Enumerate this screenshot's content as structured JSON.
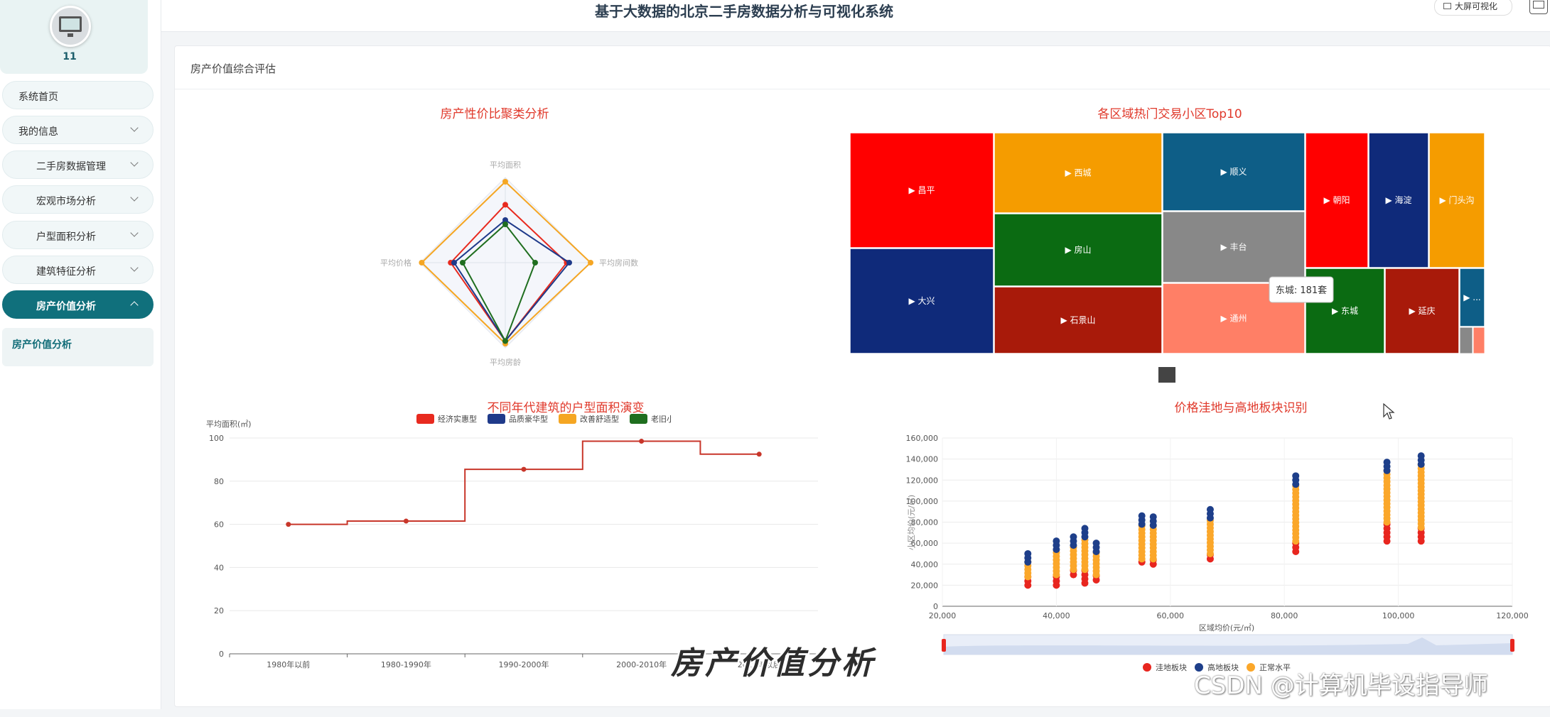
{
  "header": {
    "title": "基于大数据的北京二手房数据分析与可视化系统",
    "bigscreen_label": "大屏可视化"
  },
  "user": {
    "name": "11"
  },
  "sidebar": {
    "items": [
      {
        "label": "系统首页"
      },
      {
        "label": "我的信息"
      },
      {
        "label": "二手房数据管理"
      },
      {
        "label": "宏观市场分析"
      },
      {
        "label": "户型面积分析"
      },
      {
        "label": "建筑特征分析"
      },
      {
        "label": "房产价值分析"
      }
    ],
    "subitem": "房产价值分析"
  },
  "card": {
    "title": "房产价值综合评估"
  },
  "radar": {
    "title": "房产性价比聚类分析",
    "indicators": [
      "平均面积",
      "平均房间数",
      "平均房龄",
      "平均价格"
    ],
    "series": [
      {
        "name": "经济实惠型",
        "color": "#e82a1f",
        "values": [
          0.68,
          0.72,
          0.92,
          0.64
        ]
      },
      {
        "name": "品质豪华型",
        "color": "#1f3a8a",
        "values": [
          0.5,
          0.75,
          0.92,
          0.6
        ]
      },
      {
        "name": "改善舒适型",
        "color": "#f5a623",
        "values": [
          0.95,
          1.0,
          0.95,
          0.98
        ]
      },
      {
        "name": "老旧小区型",
        "color": "#1f6e1f",
        "values": [
          0.45,
          0.35,
          0.92,
          0.5
        ]
      }
    ]
  },
  "treemap": {
    "title": "各区域热门交易小区Top10",
    "tooltip": "东城: 181套",
    "labels": [
      "昌平",
      "大兴",
      "西城",
      "房山",
      "石景山",
      "顺义",
      "丰台",
      "通州",
      "朝阳",
      "海淀",
      "门头沟",
      "东城",
      "延庆",
      "..."
    ]
  },
  "step": {
    "title": "不同年代建筑的户型面积演变",
    "ylabel": "平均面积(㎡)",
    "categories": [
      "1980年以前",
      "1980-1990年",
      "1990-2000年",
      "2000-2010年",
      "2010年以后"
    ],
    "values": [
      60,
      61.5,
      85.5,
      98.5,
      92.5
    ],
    "yticks": [
      "0",
      "20",
      "40",
      "60",
      "80",
      "100"
    ]
  },
  "scatter": {
    "title": "价格洼地与高地板块识别",
    "xlabel": "区域均价(元/㎡)",
    "ylabel": "小区均价(元/㎡)",
    "xticks": [
      "20,000",
      "40,000",
      "60,000",
      "80,000",
      "100,000",
      "120,000"
    ],
    "yticks": [
      "0",
      "20,000",
      "40,000",
      "60,000",
      "80,000",
      "100,000",
      "120,000",
      "140,000",
      "160,000"
    ],
    "legend": [
      "洼地板块",
      "高地板块",
      "正常水平"
    ]
  },
  "overlay": {
    "watermark": "房产价值分析",
    "csdn": "CSDN @计算机毕设指导师"
  }
}
